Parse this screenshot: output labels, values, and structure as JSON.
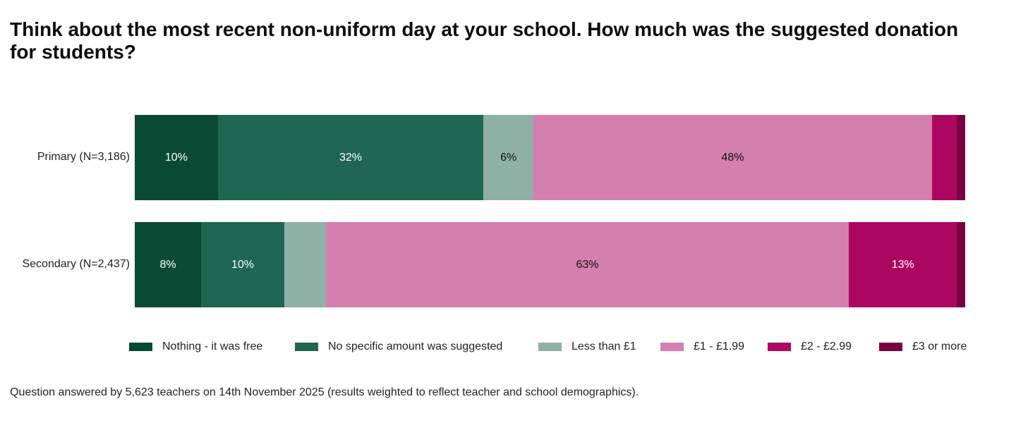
{
  "chart_data": {
    "type": "bar",
    "orientation": "horizontal-stacked-100",
    "title": "Think about the most recent non-uniform day at your school. How much was the suggested donation for students?",
    "categories": [
      "Primary (N=3,186)",
      "Secondary (N=2,437)"
    ],
    "series": [
      {
        "name": "Nothing - it was free",
        "color": "#0a4a35",
        "label_color": "#ffffff",
        "values": [
          10,
          8
        ],
        "labels": [
          "10%",
          "8%"
        ]
      },
      {
        "name": "No specific amount was suggested",
        "color": "#1f6650",
        "label_color": "#ffffff",
        "values": [
          32,
          10
        ],
        "labels": [
          "32%",
          "10%"
        ]
      },
      {
        "name": "Less than £1",
        "color": "#8fb0a5",
        "label_color": "#111111",
        "values": [
          6,
          5
        ],
        "labels": [
          "6%",
          ""
        ]
      },
      {
        "name": "£1 - £1.99",
        "color": "#d47fae",
        "label_color": "#111111",
        "values": [
          48,
          63
        ],
        "labels": [
          "48%",
          "63%"
        ]
      },
      {
        "name": "£2 - £2.99",
        "color": "#ac0760",
        "label_color": "#ffffff",
        "values": [
          3,
          13
        ],
        "labels": [
          "",
          "13%"
        ]
      },
      {
        "name": "£3 or more",
        "color": "#7a0044",
        "label_color": "#ffffff",
        "values": [
          1,
          1
        ],
        "labels": [
          "",
          ""
        ]
      }
    ],
    "xlim": [
      0,
      100
    ],
    "grid": false,
    "legend": "bottom"
  },
  "footnote": "Question answered by 5,623 teachers on 14th November 2025 (results weighted to reflect teacher and school demographics)."
}
